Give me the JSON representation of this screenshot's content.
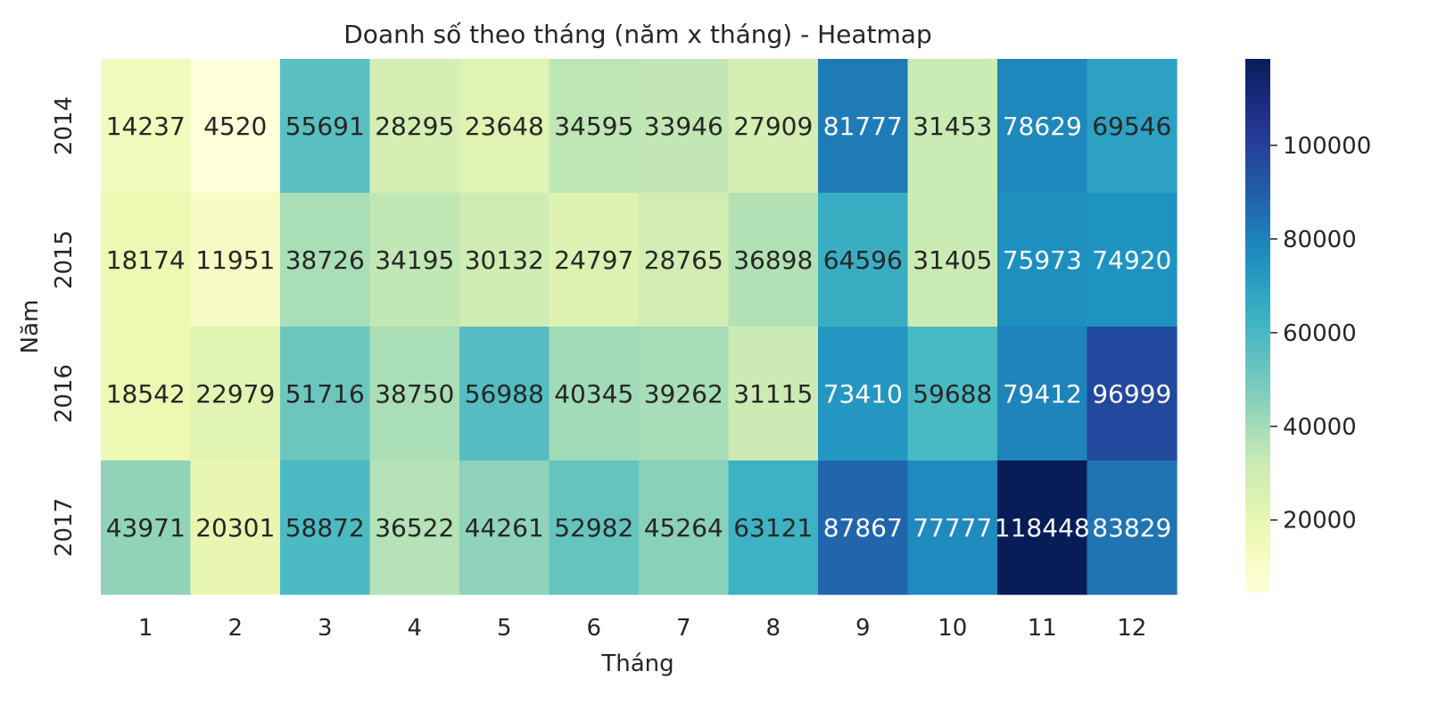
{
  "chart_data": {
    "type": "heatmap",
    "title": "Doanh số theo tháng (năm x tháng) - Heatmap",
    "xlabel": "Tháng",
    "ylabel": "Năm",
    "x_categories": [
      "1",
      "2",
      "3",
      "4",
      "5",
      "6",
      "7",
      "8",
      "9",
      "10",
      "11",
      "12"
    ],
    "y_categories": [
      "2014",
      "2015",
      "2016",
      "2017"
    ],
    "values": [
      [
        14237,
        4520,
        55691,
        28295,
        23648,
        34595,
        33946,
        27909,
        81777,
        31453,
        78629,
        69546
      ],
      [
        18174,
        11951,
        38726,
        34195,
        30132,
        24797,
        28765,
        36898,
        64596,
        31405,
        75973,
        74920
      ],
      [
        18542,
        22979,
        51716,
        38750,
        56988,
        40345,
        39262,
        31115,
        73410,
        59688,
        79412,
        96999
      ],
      [
        43971,
        20301,
        58872,
        36522,
        44261,
        52982,
        45264,
        63121,
        87867,
        77777,
        118448,
        83829
      ]
    ],
    "colorbar": {
      "colormap": "YlGnBu",
      "min": 4520,
      "max": 118448,
      "ticks": [
        20000,
        40000,
        60000,
        80000,
        100000
      ],
      "tick_labels": [
        "20000",
        "40000",
        "60000",
        "80000",
        "100000"
      ]
    },
    "annotations": true,
    "grid": false
  }
}
